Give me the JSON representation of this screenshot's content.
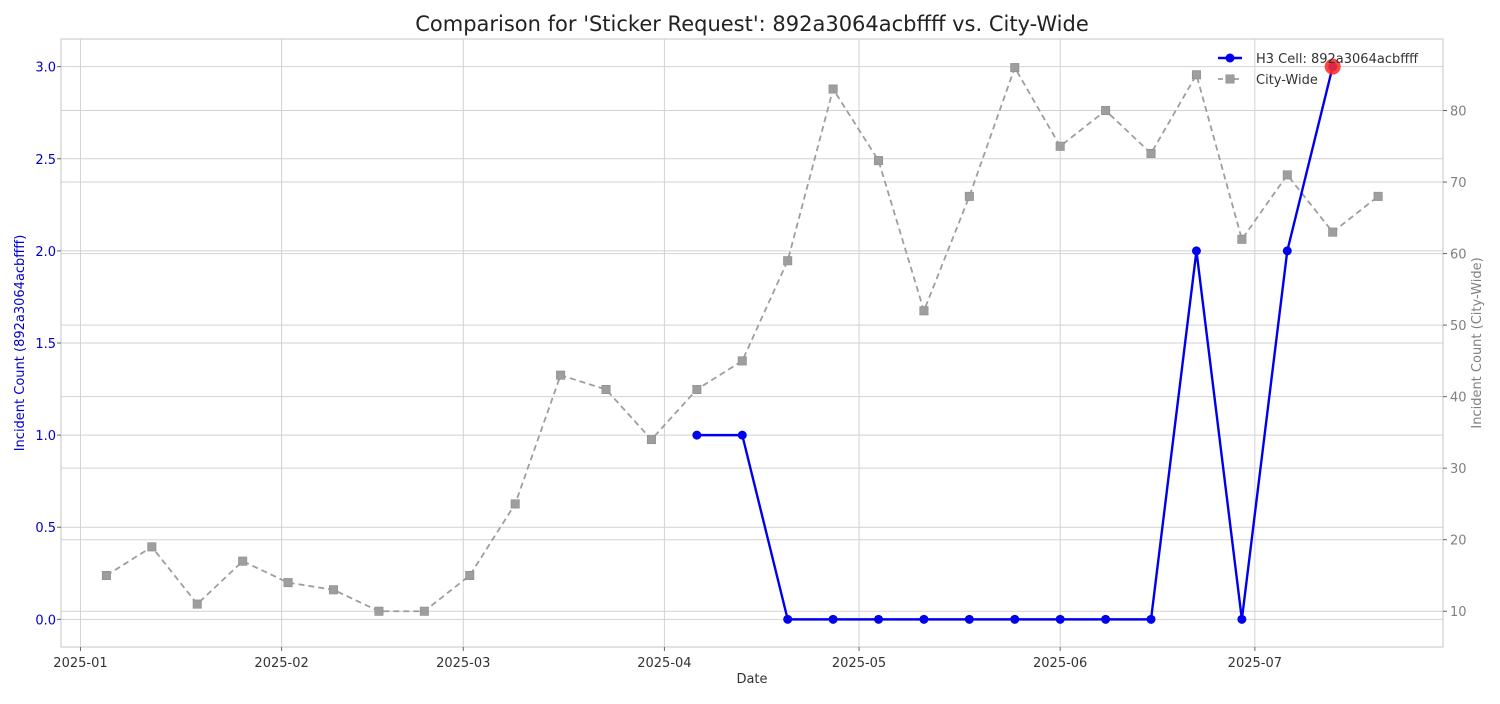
{
  "chart_data": {
    "type": "line",
    "title": "Comparison for 'Sticker Request': 892a3064acbffff vs. City-Wide",
    "xlabel": "Date",
    "ylabel_left": "Incident Count (892a3064acbffff)",
    "ylabel_right": "Incident Count (City-Wide)",
    "x_ticks": [
      "2025-01",
      "2025-02",
      "2025-03",
      "2025-04",
      "2025-05",
      "2025-06",
      "2025-07"
    ],
    "xlim": [
      "2024-12-29",
      "2025-07-30"
    ],
    "ylim_left": [
      -0.15,
      3.15
    ],
    "ylim_right": [
      5,
      90
    ],
    "left_ticks": [
      "0.0",
      "0.5",
      "1.0",
      "1.5",
      "2.0",
      "2.5",
      "3.0"
    ],
    "right_ticks": [
      "10",
      "20",
      "30",
      "40",
      "50",
      "60",
      "70",
      "80"
    ],
    "grid": true,
    "legend": "top-right",
    "colors": {
      "h3": "#0000ee",
      "city": "#9e9e9e",
      "highlight": "#ff2a2a",
      "left_axis_text": "#0000cc",
      "right_axis_text": "#808080"
    },
    "series": [
      {
        "name": "H3 Cell: 892a3064acbffff",
        "axis": "left",
        "style": "solid-circle",
        "points": [
          {
            "x": "2025-04-06",
            "y": 1
          },
          {
            "x": "2025-04-13",
            "y": 1
          },
          {
            "x": "2025-04-20",
            "y": 0
          },
          {
            "x": "2025-04-27",
            "y": 0
          },
          {
            "x": "2025-05-04",
            "y": 0
          },
          {
            "x": "2025-05-11",
            "y": 0
          },
          {
            "x": "2025-05-18",
            "y": 0
          },
          {
            "x": "2025-05-25",
            "y": 0
          },
          {
            "x": "2025-06-01",
            "y": 0
          },
          {
            "x": "2025-06-08",
            "y": 0
          },
          {
            "x": "2025-06-15",
            "y": 0
          },
          {
            "x": "2025-06-22",
            "y": 2
          },
          {
            "x": "2025-06-29",
            "y": 0
          },
          {
            "x": "2025-07-06",
            "y": 2
          },
          {
            "x": "2025-07-13",
            "y": 3
          }
        ],
        "highlight": {
          "x": "2025-07-13",
          "y": 3
        }
      },
      {
        "name": "City-Wide",
        "axis": "right",
        "style": "dashed-square",
        "points": [
          {
            "x": "2025-01-05",
            "y": 15
          },
          {
            "x": "2025-01-12",
            "y": 19
          },
          {
            "x": "2025-01-19",
            "y": 11
          },
          {
            "x": "2025-01-26",
            "y": 17
          },
          {
            "x": "2025-02-02",
            "y": 14
          },
          {
            "x": "2025-02-09",
            "y": 13
          },
          {
            "x": "2025-02-16",
            "y": 10
          },
          {
            "x": "2025-02-23",
            "y": 10
          },
          {
            "x": "2025-03-02",
            "y": 15
          },
          {
            "x": "2025-03-09",
            "y": 25
          },
          {
            "x": "2025-03-16",
            "y": 43
          },
          {
            "x": "2025-03-23",
            "y": 41
          },
          {
            "x": "2025-03-30",
            "y": 34
          },
          {
            "x": "2025-04-06",
            "y": 41
          },
          {
            "x": "2025-04-13",
            "y": 45
          },
          {
            "x": "2025-04-20",
            "y": 59
          },
          {
            "x": "2025-04-27",
            "y": 83
          },
          {
            "x": "2025-05-04",
            "y": 73
          },
          {
            "x": "2025-05-11",
            "y": 52
          },
          {
            "x": "2025-05-18",
            "y": 68
          },
          {
            "x": "2025-05-25",
            "y": 86
          },
          {
            "x": "2025-06-01",
            "y": 75
          },
          {
            "x": "2025-06-08",
            "y": 80
          },
          {
            "x": "2025-06-15",
            "y": 74
          },
          {
            "x": "2025-06-22",
            "y": 85
          },
          {
            "x": "2025-06-29",
            "y": 62
          },
          {
            "x": "2025-07-06",
            "y": 71
          },
          {
            "x": "2025-07-13",
            "y": 63
          },
          {
            "x": "2025-07-20",
            "y": 68
          }
        ]
      }
    ]
  }
}
